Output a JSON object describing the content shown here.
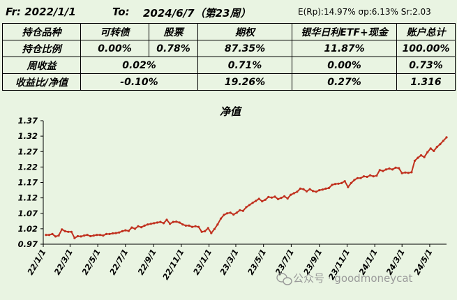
{
  "header": {
    "from": "Fr: 2022/1/1",
    "to_label": "To:",
    "to_value": "2024/6/7（第23周）",
    "stats": "E(Rp):14.97%  σp:6.13%  Sr:2.03"
  },
  "table": {
    "header_row": [
      "持仓品种",
      "可转债",
      "股票",
      "期权",
      "银华日利ETF+现金",
      "账户总计"
    ],
    "position_row": [
      "持仓比例",
      "0.00%",
      "0.78%",
      "87.35%",
      "11.87%",
      "100.00%"
    ],
    "weekly_row": [
      "周收益",
      "0.02%",
      "0.71%",
      "0.00%",
      "0.73%"
    ],
    "ratio_row": [
      "收益比/净值",
      "-0.10%",
      "19.26%",
      "0.27%",
      "1.316"
    ]
  },
  "watermark": "公众号 · goodmoneycat",
  "chart_data": {
    "type": "line",
    "title": "净值",
    "xlabel": "",
    "ylabel": "",
    "ylim": [
      0.97,
      1.37
    ],
    "yticks": [
      0.97,
      1.02,
      1.07,
      1.12,
      1.17,
      1.22,
      1.27,
      1.32,
      1.37
    ],
    "ytick_labels": [
      "0.97",
      "1.02",
      "1.07",
      "1.12",
      "1.17",
      "1.22",
      "1.27",
      "1.32",
      "1.37"
    ],
    "xtick_labels": [
      "22/1/1",
      "22/3/1",
      "22/5/1",
      "22/7/1",
      "22/9/1",
      "22/11/1",
      "23/1/1",
      "23/3/1",
      "23/5/1",
      "23/7/1",
      "23/9/1",
      "23/11/1",
      "24/1/1",
      "24/3/1",
      "24/5/1"
    ],
    "xticks": [
      "2022-01-01",
      "2022-03-01",
      "2022-05-01",
      "2022-07-01",
      "2022-09-01",
      "2022-11-01",
      "2023-01-01",
      "2023-03-01",
      "2023-05-01",
      "2023-07-01",
      "2023-09-01",
      "2023-11-01",
      "2024-01-01",
      "2024-03-01",
      "2024-05-01"
    ],
    "xrange": [
      "2022-01-01",
      "2024-06-07"
    ],
    "grid": false,
    "line_color": "#c0301e",
    "series": [
      {
        "x": [
          "2022-01-07",
          "2022-01-14",
          "2022-01-21",
          "2022-01-28",
          "2022-02-04",
          "2022-02-11",
          "2022-02-18",
          "2022-02-25",
          "2022-03-04",
          "2022-03-11",
          "2022-03-18",
          "2022-03-25",
          "2022-04-01",
          "2022-04-08",
          "2022-04-15",
          "2022-04-22",
          "2022-04-29",
          "2022-05-06",
          "2022-05-13",
          "2022-05-20",
          "2022-05-27",
          "2022-06-03",
          "2022-06-10",
          "2022-06-17",
          "2022-06-24",
          "2022-07-01",
          "2022-07-08",
          "2022-07-15",
          "2022-07-22",
          "2022-07-29",
          "2022-08-05",
          "2022-08-12",
          "2022-08-19",
          "2022-08-26",
          "2022-09-02",
          "2022-09-09",
          "2022-09-16",
          "2022-09-23",
          "2022-09-30",
          "2022-10-07",
          "2022-10-14",
          "2022-10-21",
          "2022-10-28",
          "2022-11-04",
          "2022-11-11",
          "2022-11-18",
          "2022-11-25",
          "2022-12-02",
          "2022-12-09",
          "2022-12-16",
          "2022-12-23",
          "2022-12-30",
          "2023-01-06",
          "2023-01-13",
          "2023-01-20",
          "2023-01-27",
          "2023-02-03",
          "2023-02-10",
          "2023-02-17",
          "2023-02-24",
          "2023-03-03",
          "2023-03-10",
          "2023-03-17",
          "2023-03-24",
          "2023-03-31",
          "2023-04-07",
          "2023-04-14",
          "2023-04-21",
          "2023-04-28",
          "2023-05-05",
          "2023-05-12",
          "2023-05-19",
          "2023-05-26",
          "2023-06-02",
          "2023-06-09",
          "2023-06-16",
          "2023-06-23",
          "2023-06-30",
          "2023-07-07",
          "2023-07-14",
          "2023-07-21",
          "2023-07-28",
          "2023-08-04",
          "2023-08-11",
          "2023-08-18",
          "2023-08-25",
          "2023-09-01",
          "2023-09-08",
          "2023-09-15",
          "2023-09-22",
          "2023-09-29",
          "2023-10-06",
          "2023-10-13",
          "2023-10-20",
          "2023-10-27",
          "2023-11-03",
          "2023-11-10",
          "2023-11-17",
          "2023-11-24",
          "2023-12-01",
          "2023-12-08",
          "2023-12-15",
          "2023-12-22",
          "2023-12-29",
          "2024-01-05",
          "2024-01-12",
          "2024-01-19",
          "2024-01-26",
          "2024-02-02",
          "2024-02-09",
          "2024-02-16",
          "2024-02-23",
          "2024-03-01",
          "2024-03-08",
          "2024-03-15",
          "2024-03-22",
          "2024-03-29",
          "2024-04-05",
          "2024-04-12",
          "2024-04-19",
          "2024-04-26",
          "2024-05-03",
          "2024-05-10",
          "2024-05-17",
          "2024-05-24",
          "2024-05-31",
          "2024-06-07"
        ],
        "values": [
          1.0,
          1.0,
          1.003,
          0.995,
          0.998,
          1.018,
          1.012,
          1.01,
          1.01,
          0.99,
          0.996,
          0.995,
          0.998,
          1.0,
          0.996,
          0.998,
          1.0,
          1.0,
          0.998,
          1.003,
          1.003,
          1.005,
          1.006,
          1.008,
          1.012,
          1.015,
          1.013,
          1.024,
          1.02,
          1.028,
          1.025,
          1.03,
          1.034,
          1.036,
          1.038,
          1.04,
          1.042,
          1.038,
          1.049,
          1.036,
          1.042,
          1.043,
          1.04,
          1.034,
          1.03,
          1.03,
          1.026,
          1.028,
          1.026,
          1.01,
          1.012,
          1.022,
          1.006,
          1.019,
          1.034,
          1.053,
          1.065,
          1.07,
          1.072,
          1.066,
          1.072,
          1.08,
          1.078,
          1.09,
          1.097,
          1.104,
          1.11,
          1.117,
          1.109,
          1.114,
          1.123,
          1.121,
          1.124,
          1.116,
          1.12,
          1.125,
          1.118,
          1.13,
          1.135,
          1.14,
          1.15,
          1.148,
          1.141,
          1.148,
          1.142,
          1.14,
          1.145,
          1.147,
          1.15,
          1.152,
          1.162,
          1.165,
          1.166,
          1.168,
          1.174,
          1.155,
          1.168,
          1.178,
          1.184,
          1.184,
          1.19,
          1.188,
          1.193,
          1.19,
          1.192,
          1.21,
          1.207,
          1.212,
          1.215,
          1.212,
          1.218,
          1.216,
          1.2,
          1.202,
          1.201,
          1.203,
          1.24,
          1.25,
          1.258,
          1.252,
          1.268,
          1.28,
          1.272,
          1.285,
          1.294,
          1.305,
          1.316
        ]
      }
    ]
  }
}
